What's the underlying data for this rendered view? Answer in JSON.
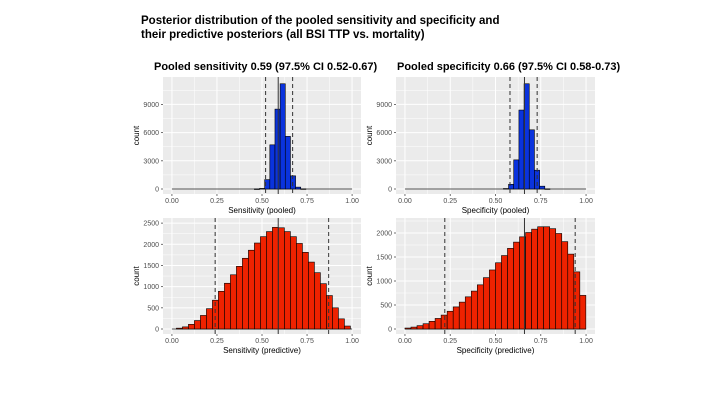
{
  "slide": {
    "title_line1": "Posterior distribution of the pooled sensitivity and specificity and",
    "title_line2": "their predictive posteriors (all BSI TTP vs. mortality)"
  },
  "colors": {
    "panel_bg": "#ebebeb",
    "grid": "#ffffff",
    "pooled_fill": "#0a33dd",
    "predictive_fill": "#ee2200",
    "bar_outline": "#000000",
    "ci_line": "#333333",
    "axis_text": "#4d4d4d"
  },
  "chart_data": [
    {
      "id": "sens-pooled",
      "type": "bar",
      "title": "Pooled sensitivity 0.59 (97.5% CI 0.52-0.67)",
      "xlabel": "Sensitivity (pooled)",
      "ylabel": "count",
      "xlim": [
        0,
        1
      ],
      "ylim": [
        0,
        11600
      ],
      "xticks": [
        0,
        0.25,
        0.5,
        0.75,
        1
      ],
      "xtick_labels": [
        "0.00",
        "0.25",
        "0.50",
        "0.75",
        "1.00"
      ],
      "yticks": [
        0,
        3000,
        6000,
        9000
      ],
      "ytick_labels": [
        "0",
        "3000",
        "6000",
        "9000"
      ],
      "fill": "#0a33dd",
      "grid": true,
      "bin_start": 0.0,
      "bin_width": 0.0286,
      "values": [
        0,
        0,
        0,
        0,
        0,
        0,
        0,
        0,
        0,
        0,
        0,
        0,
        0,
        0,
        0,
        0,
        10,
        60,
        1000,
        4700,
        8500,
        11200,
        5600,
        1400,
        200,
        20,
        0,
        0,
        0,
        0,
        0,
        0,
        0,
        0,
        0
      ],
      "median": 0.59,
      "ci": [
        0.52,
        0.67
      ]
    },
    {
      "id": "spec-pooled",
      "type": "bar",
      "title": "Pooled specificity 0.66 (97.5% CI 0.58-0.73)",
      "xlabel": "Specificity (pooled)",
      "ylabel": "count",
      "xlim": [
        0,
        1
      ],
      "ylim": [
        0,
        11600
      ],
      "xticks": [
        0,
        0.25,
        0.5,
        0.75,
        1
      ],
      "xtick_labels": [
        "0.00",
        "0.25",
        "0.50",
        "0.75",
        "1.00"
      ],
      "yticks": [
        0,
        3000,
        6000,
        9000
      ],
      "ytick_labels": [
        "0",
        "3000",
        "6000",
        "9000"
      ],
      "fill": "#0a33dd",
      "grid": true,
      "bin_start": 0.0,
      "bin_width": 0.0286,
      "values": [
        0,
        0,
        0,
        0,
        0,
        0,
        0,
        0,
        0,
        0,
        0,
        0,
        0,
        0,
        0,
        0,
        0,
        0,
        0,
        50,
        500,
        3100,
        8400,
        11200,
        6300,
        2000,
        300,
        20,
        0,
        0,
        0,
        0,
        0,
        0,
        0
      ],
      "median": 0.66,
      "ci": [
        0.58,
        0.73
      ]
    },
    {
      "id": "sens-predictive",
      "type": "bar",
      "xlabel": "Sensitivity (predictive)",
      "ylabel": "count",
      "xlim": [
        0,
        1
      ],
      "ylim": [
        0,
        2550
      ],
      "xticks": [
        0,
        0.25,
        0.5,
        0.75,
        1
      ],
      "xtick_labels": [
        "0.00",
        "0.25",
        "0.50",
        "0.75",
        "1.00"
      ],
      "yticks": [
        0,
        500,
        1000,
        1500,
        2000,
        2500
      ],
      "ytick_labels": [
        "0",
        "500",
        "1000",
        "1500",
        "2000",
        "2500"
      ],
      "fill": "#ee2200",
      "grid": true,
      "bin_start": 0.025,
      "bin_width": 0.0333,
      "values": [
        20,
        50,
        110,
        200,
        320,
        480,
        680,
        890,
        1080,
        1280,
        1480,
        1670,
        1860,
        2030,
        2180,
        2300,
        2400,
        2390,
        2300,
        2180,
        2020,
        1810,
        1580,
        1330,
        1070,
        790,
        500,
        240,
        70
      ],
      "median": 0.59,
      "ci": [
        0.24,
        0.87
      ]
    },
    {
      "id": "spec-predictive",
      "type": "bar",
      "xlabel": "Specificity (predictive)",
      "ylabel": "count",
      "xlim": [
        0,
        1
      ],
      "ylim": [
        0,
        2250
      ],
      "xticks": [
        0,
        0.25,
        0.5,
        0.75,
        1
      ],
      "xtick_labels": [
        "0.00",
        "0.25",
        "0.50",
        "0.75",
        "1.00"
      ],
      "yticks": [
        0,
        500,
        1000,
        1500,
        2000
      ],
      "ytick_labels": [
        "0",
        "500",
        "1000",
        "1500",
        "2000"
      ],
      "fill": "#ee2200",
      "grid": true,
      "bin_start": 0.0,
      "bin_width": 0.0333,
      "values": [
        20,
        40,
        70,
        110,
        160,
        220,
        290,
        370,
        460,
        560,
        670,
        790,
        920,
        1070,
        1230,
        1380,
        1530,
        1680,
        1810,
        1920,
        2010,
        2080,
        2130,
        2130,
        2090,
        1990,
        1820,
        1560,
        1190,
        700
      ],
      "median": 0.66,
      "ci": [
        0.22,
        0.94
      ]
    }
  ]
}
